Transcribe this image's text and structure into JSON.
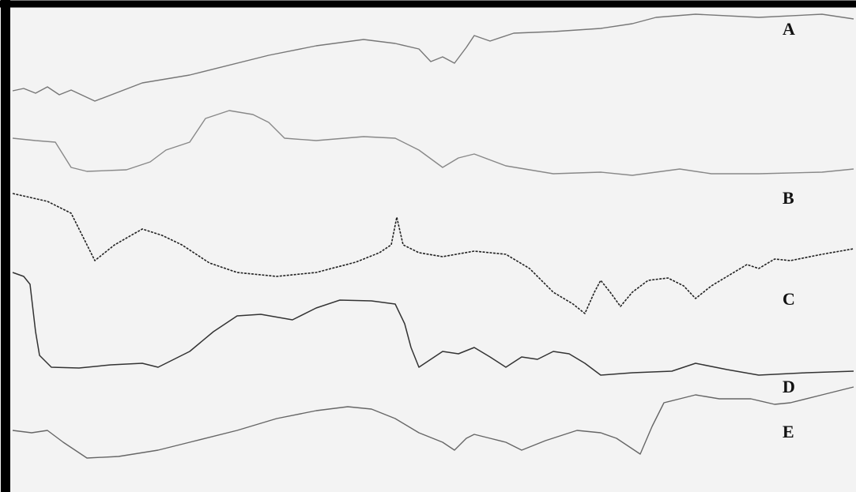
{
  "spectra": [
    {
      "label": "A"
    },
    {
      "label": "B"
    },
    {
      "label": "C"
    },
    {
      "label": "D"
    },
    {
      "label": "E"
    }
  ]
}
